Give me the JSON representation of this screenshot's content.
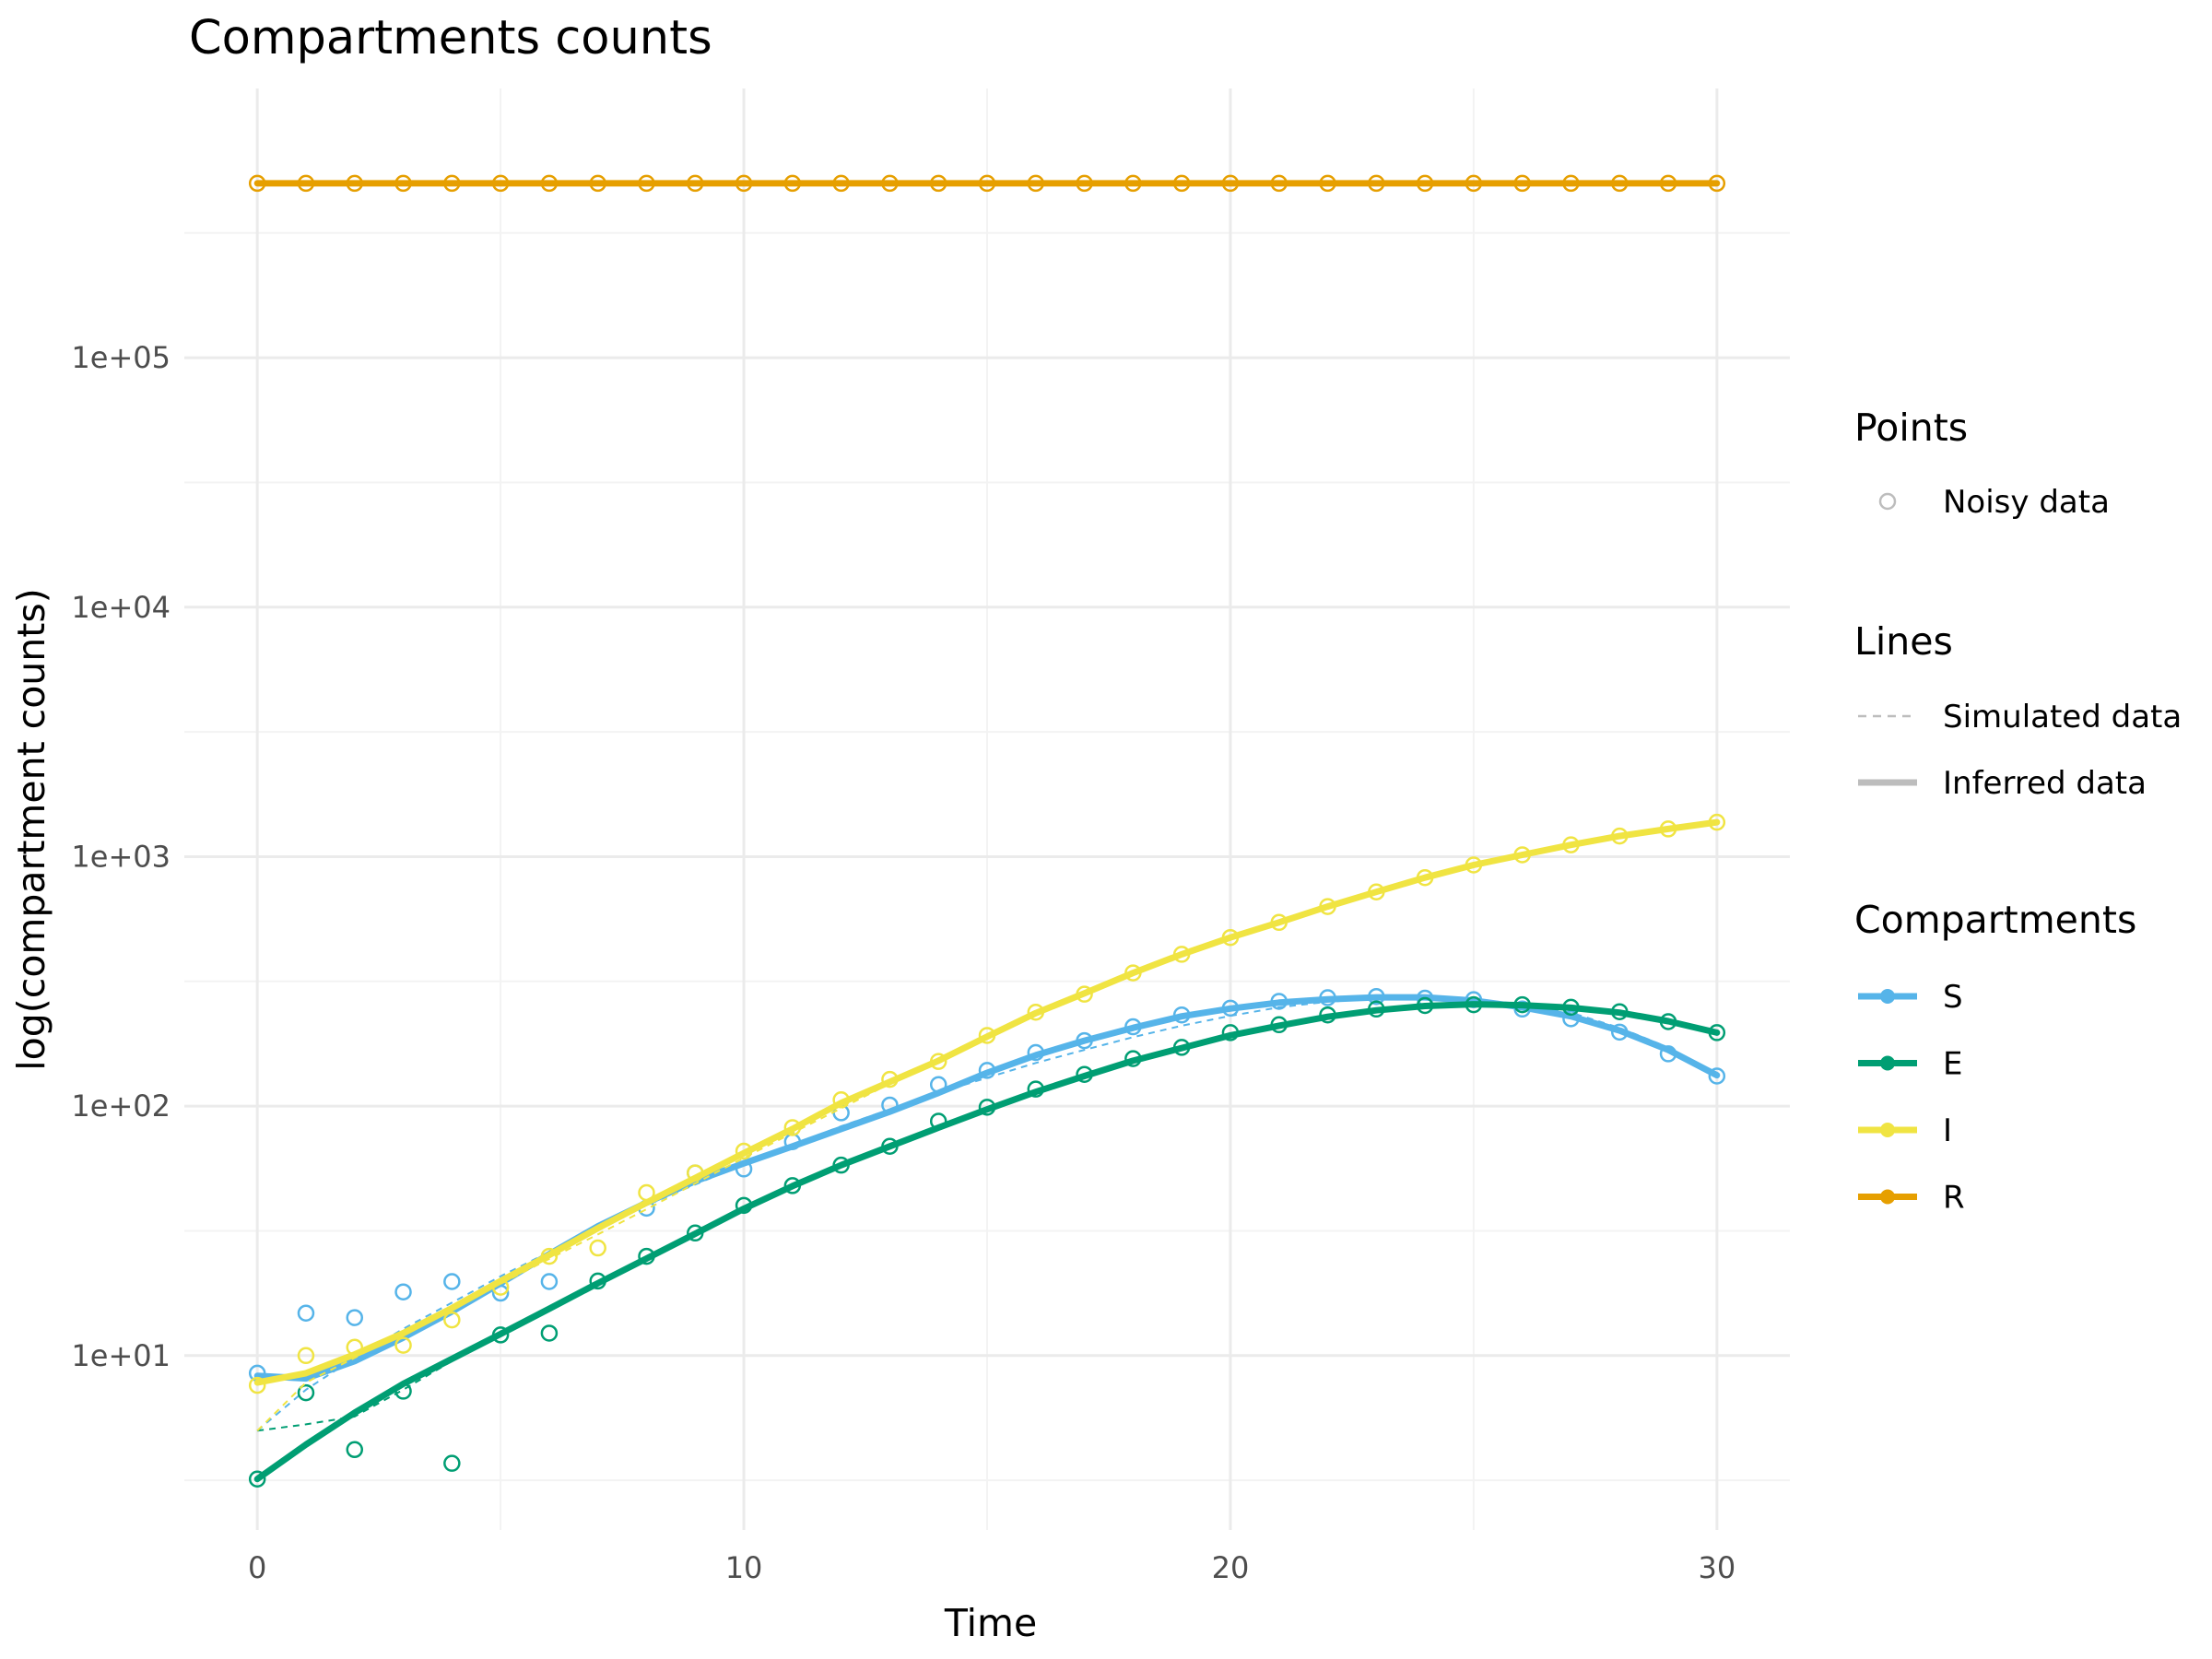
{
  "chart_data": {
    "type": "line",
    "title": "Compartments counts",
    "xlabel": "Time",
    "ylabel": "log(compartment counts)",
    "y_scale": "log10",
    "xlim": [
      -1.5,
      31.5
    ],
    "ylim": [
      2.0,
      1200000
    ],
    "x_ticks": [
      0,
      10,
      20,
      30
    ],
    "x_tick_labels": [
      "0",
      "10",
      "20",
      "30"
    ],
    "y_ticks": [
      10,
      100,
      1000,
      10000,
      100000
    ],
    "y_tick_labels": [
      "1e+01",
      "1e+02",
      "1e+03",
      "1e+04",
      "1e+05"
    ],
    "grid": true,
    "legend_position": "right",
    "legends": {
      "points": {
        "title": "Points",
        "items": [
          {
            "label": "Noisy data",
            "color": "#bdbdbd"
          }
        ]
      },
      "lines": {
        "title": "Lines",
        "items": [
          {
            "label": "Simulated data",
            "style": "dashed",
            "color": "#bdbdbd"
          },
          {
            "label": "Inferred data",
            "style": "solid",
            "color": "#bdbdbd"
          }
        ]
      },
      "compartments": {
        "title": "Compartments",
        "items": [
          {
            "label": "S",
            "color": "#56b4e9"
          },
          {
            "label": "E",
            "color": "#009e73"
          },
          {
            "label": "I",
            "color": "#f0e442"
          },
          {
            "label": "R",
            "color": "#e69f00"
          }
        ]
      }
    },
    "x": [
      0,
      1,
      2,
      3,
      4,
      5,
      6,
      7,
      8,
      9,
      10,
      11,
      12,
      13,
      14,
      15,
      16,
      17,
      18,
      19,
      20,
      21,
      22,
      23,
      24,
      25,
      26,
      27,
      28,
      29,
      30
    ],
    "series": [
      {
        "name": "S",
        "color": "#56b4e9",
        "noisy": [
          8.5,
          14.8,
          14.2,
          18,
          19.8,
          17.8,
          19.8,
          null,
          39,
          54,
          56,
          72,
          94,
          101,
          122,
          139,
          164,
          183,
          208,
          232,
          247,
          263,
          272,
          275,
          271,
          267,
          245,
          224,
          198,
          162,
          132
        ],
        "simulated": [
          5,
          7.3,
          9.8,
          12.8,
          16.3,
          20.8,
          26,
          32.5,
          40,
          48.5,
          58.5,
          70,
          83,
          97,
          113,
          130,
          149,
          168,
          189,
          210,
          230,
          249,
          262,
          270,
          272,
          267,
          257,
          237,
          206,
          172,
          134
        ],
        "inferred": [
          8.3,
          8.1,
          9.5,
          11.8,
          15,
          19.5,
          25.5,
          33,
          41,
          50,
          59,
          69,
          81,
          95,
          113,
          136,
          160,
          183,
          206,
          229,
          246,
          260,
          268,
          273,
          273,
          265,
          249,
          229,
          201,
          168,
          133
        ]
      },
      {
        "name": "E",
        "color": "#009e73",
        "noisy": [
          3.2,
          7.1,
          4.2,
          7.2,
          3.7,
          12.1,
          12.3,
          19.9,
          25,
          31,
          40,
          48,
          58,
          69,
          87,
          99,
          117,
          134,
          155,
          172,
          197,
          212,
          232,
          245,
          253,
          255,
          255,
          249,
          239,
          218,
          197
        ],
        "simulated": [
          5,
          5.3,
          5.7,
          7.3,
          9.5,
          12.1,
          15.2,
          19.2,
          24.5,
          31,
          39,
          48,
          58,
          69,
          82,
          97,
          114,
          132,
          152,
          171,
          192,
          210,
          228,
          242,
          252,
          256,
          254,
          248,
          237,
          219,
          197
        ],
        "inferred": [
          3.2,
          4.4,
          5.9,
          7.7,
          9.7,
          12.2,
          15.4,
          19.5,
          24.5,
          30.8,
          38.8,
          47.8,
          58,
          69,
          82,
          97,
          114,
          132,
          152,
          171,
          192,
          210,
          228,
          242,
          252,
          256,
          254,
          248,
          237,
          219,
          197
        ]
      },
      {
        "name": "I",
        "color": "#f0e442",
        "noisy": [
          7.6,
          10,
          10.8,
          11,
          13.9,
          18.8,
          25,
          27,
          45,
          54,
          66,
          82,
          106,
          128,
          151,
          192,
          238,
          281,
          342,
          406,
          474,
          545,
          631,
          722,
          824,
          926,
          1017,
          1115,
          1209,
          1291,
          1374
        ],
        "simulated": [
          5,
          7.8,
          9.8,
          12.4,
          15.6,
          19.4,
          24.4,
          30.6,
          38.6,
          49,
          62,
          78,
          98,
          123,
          152,
          189,
          234,
          288,
          348,
          412,
          480,
          552,
          634,
          722,
          822,
          926,
          1020,
          1115,
          1209,
          1291,
          1374
        ],
        "inferred": [
          7.8,
          8.5,
          10.1,
          12.3,
          15.5,
          19.9,
          25.3,
          32.4,
          41,
          51.5,
          64.8,
          81,
          103,
          125,
          152,
          190,
          236,
          283,
          342,
          406,
          474,
          545,
          631,
          722,
          824,
          926,
          1017,
          1115,
          1209,
          1291,
          1374
        ]
      },
      {
        "name": "R",
        "color": "#e69f00",
        "noisy": [
          500000,
          500000,
          500000,
          500000,
          500000,
          500000,
          500000,
          500000,
          500000,
          500000,
          500000,
          500000,
          500000,
          500000,
          500000,
          500000,
          500000,
          500000,
          500000,
          500000,
          500000,
          500000,
          500000,
          500000,
          500000,
          500000,
          500000,
          500000,
          500000,
          500000,
          500000
        ],
        "simulated": [
          500000,
          500000,
          500000,
          500000,
          500000,
          500000,
          500000,
          500000,
          500000,
          500000,
          500000,
          500000,
          500000,
          500000,
          500000,
          500000,
          500000,
          500000,
          500000,
          500000,
          500000,
          500000,
          500000,
          500000,
          500000,
          500000,
          500000,
          500000,
          500000,
          500000,
          500000
        ],
        "inferred": [
          500000,
          500000,
          500000,
          500000,
          500000,
          500000,
          500000,
          500000,
          500000,
          500000,
          500000,
          500000,
          500000,
          500000,
          500000,
          500000,
          500000,
          500000,
          500000,
          500000,
          500000,
          500000,
          500000,
          500000,
          500000,
          500000,
          500000,
          500000,
          500000,
          500000,
          500000
        ]
      }
    ]
  }
}
